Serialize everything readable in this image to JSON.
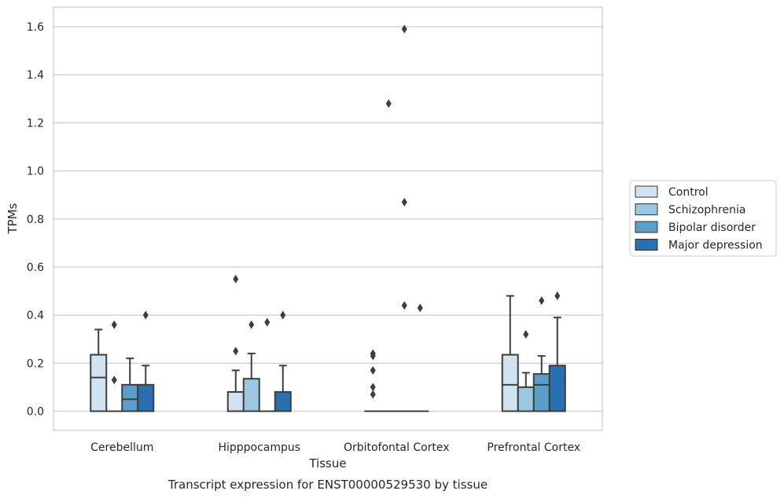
{
  "chart_data": {
    "type": "box",
    "xlabel": "Tissue",
    "ylabel": "TPMs",
    "caption": "Transcript expression for ENST00000529530 by tissue",
    "ylim": [
      -0.08,
      1.67
    ],
    "yticks": [
      0.0,
      0.2,
      0.4,
      0.6,
      0.8,
      1.0,
      1.2,
      1.4,
      1.6
    ],
    "ytick_labels": [
      "0.0",
      "0.2",
      "0.4",
      "0.6",
      "0.8",
      "1.0",
      "1.2",
      "1.4",
      "1.6"
    ],
    "grid": true,
    "legend_position": "right",
    "categories": [
      "Cerebellum",
      "Hipppocampus",
      "Orbitofontal Cortex",
      "Prefrontal Cortex"
    ],
    "series": [
      {
        "name": "Control",
        "color": "#d1e2f1",
        "boxes": [
          {
            "q1": 0.0,
            "median": 0.14,
            "q3": 0.235,
            "whisker_low": 0.0,
            "whisker_high": 0.34,
            "outliers": []
          },
          {
            "q1": 0.0,
            "median": 0.0,
            "q3": 0.08,
            "whisker_low": 0.0,
            "whisker_high": 0.17,
            "outliers": [
              0.25,
              0.55
            ]
          },
          {
            "q1": 0.0,
            "median": 0.0,
            "q3": 0.0,
            "whisker_low": 0.0,
            "whisker_high": 0.0,
            "outliers": [
              0.07,
              0.1,
              0.17,
              0.23,
              0.24
            ]
          },
          {
            "q1": 0.0,
            "median": 0.11,
            "q3": 0.235,
            "whisker_low": 0.0,
            "whisker_high": 0.48,
            "outliers": []
          }
        ]
      },
      {
        "name": "Schizophrenia",
        "color": "#9ac8e0",
        "boxes": [
          {
            "q1": 0.0,
            "median": 0.0,
            "q3": 0.0,
            "whisker_low": 0.0,
            "whisker_high": 0.0,
            "outliers": [
              0.13,
              0.36
            ]
          },
          {
            "q1": 0.0,
            "median": 0.0,
            "q3": 0.135,
            "whisker_low": 0.0,
            "whisker_high": 0.24,
            "outliers": [
              0.36
            ]
          },
          {
            "q1": 0.0,
            "median": 0.0,
            "q3": 0.0,
            "whisker_low": 0.0,
            "whisker_high": 0.0,
            "outliers": [
              1.28
            ]
          },
          {
            "q1": 0.0,
            "median": 0.0,
            "q3": 0.1,
            "whisker_low": 0.0,
            "whisker_high": 0.16,
            "outliers": [
              0.32
            ]
          }
        ]
      },
      {
        "name": "Bipolar disorder",
        "color": "#5a9ec9",
        "boxes": [
          {
            "q1": 0.0,
            "median": 0.05,
            "q3": 0.11,
            "whisker_low": 0.0,
            "whisker_high": 0.22,
            "outliers": []
          },
          {
            "q1": 0.0,
            "median": 0.0,
            "q3": 0.0,
            "whisker_low": 0.0,
            "whisker_high": 0.0,
            "outliers": [
              0.37
            ]
          },
          {
            "q1": 0.0,
            "median": 0.0,
            "q3": 0.0,
            "whisker_low": 0.0,
            "whisker_high": 0.0,
            "outliers": [
              0.44,
              0.87,
              1.59
            ]
          },
          {
            "q1": 0.0,
            "median": 0.11,
            "q3": 0.155,
            "whisker_low": 0.0,
            "whisker_high": 0.23,
            "outliers": [
              0.46
            ]
          }
        ]
      },
      {
        "name": "Major depression",
        "color": "#2a6fb0",
        "boxes": [
          {
            "q1": 0.0,
            "median": 0.0,
            "q3": 0.11,
            "whisker_low": 0.0,
            "whisker_high": 0.19,
            "outliers": [
              0.4
            ]
          },
          {
            "q1": 0.0,
            "median": 0.0,
            "q3": 0.08,
            "whisker_low": 0.0,
            "whisker_high": 0.19,
            "outliers": [
              0.4
            ]
          },
          {
            "q1": 0.0,
            "median": 0.0,
            "q3": 0.0,
            "whisker_low": 0.0,
            "whisker_high": 0.0,
            "outliers": [
              0.43
            ]
          },
          {
            "q1": 0.0,
            "median": 0.0,
            "q3": 0.19,
            "whisker_low": 0.0,
            "whisker_high": 0.39,
            "outliers": [
              0.48
            ]
          }
        ]
      }
    ]
  }
}
